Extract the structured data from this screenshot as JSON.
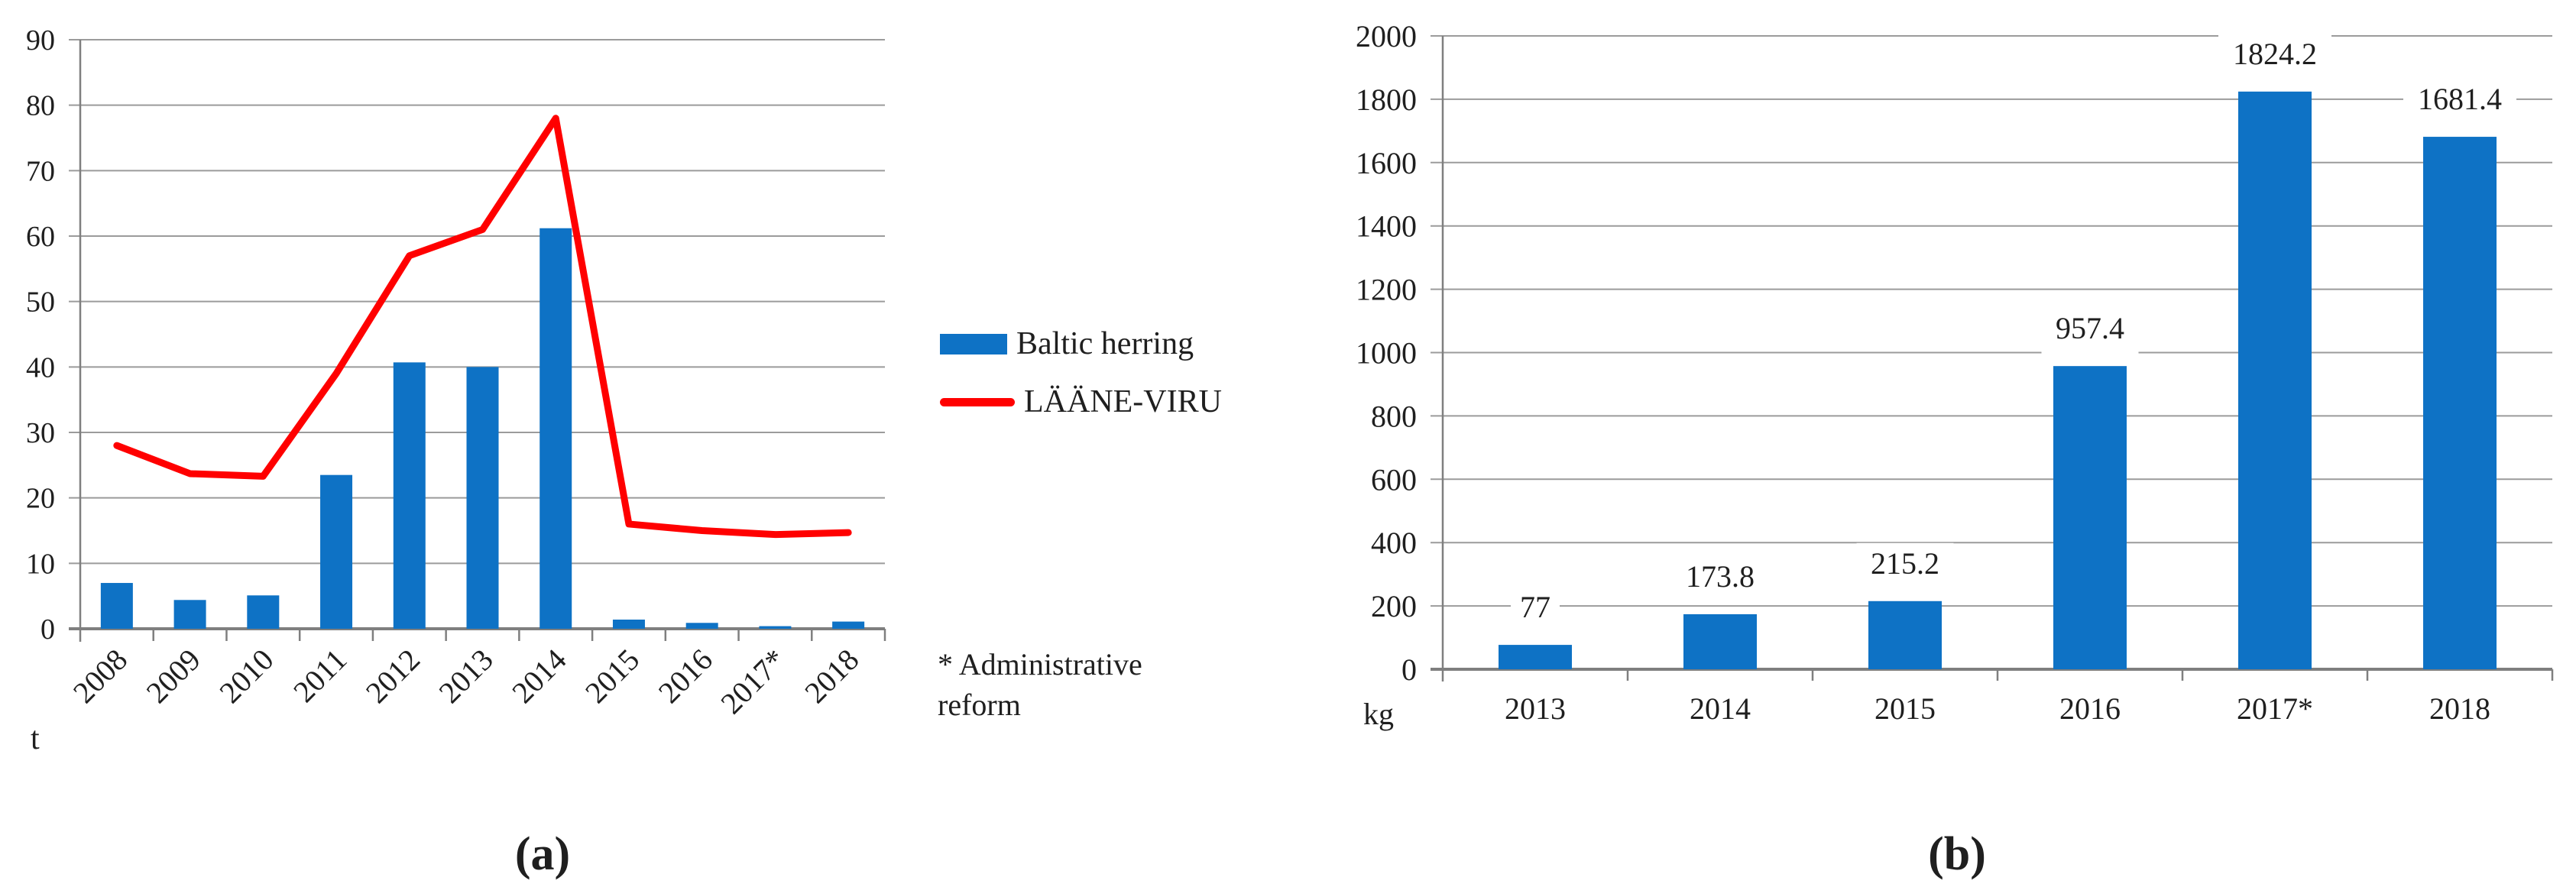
{
  "theme": {
    "bar_blue": "#0E72C5",
    "line_red": "#FF0000",
    "grid_gray": "#9B9B9B",
    "axis_gray": "#7F7F7F",
    "text_color": "#1F1F1F",
    "label_bg": "#FFFFFF"
  },
  "note": "* Administrative reform",
  "chart_data": [
    {
      "type": "bar",
      "panel": "a",
      "caption": "(a)",
      "unit_label": "t",
      "categories": [
        "2008",
        "2009",
        "2010",
        "2011",
        "2012",
        "2013",
        "2014",
        "2015",
        "2016",
        "2017*",
        "2018"
      ],
      "series": [
        {
          "name": "Baltic herring",
          "type": "bar",
          "color": "#0E72C5",
          "values": [
            7,
            4.4,
            5.1,
            23.5,
            40.7,
            40,
            61.2,
            1.4,
            0.9,
            0.4,
            1.1
          ]
        },
        {
          "name": "LÄÄNE-VIRU",
          "type": "line",
          "color": "#FF0000",
          "values": [
            28,
            23.7,
            23.3,
            39,
            57,
            61,
            78,
            16,
            15,
            14.4,
            14.7
          ]
        }
      ],
      "ylim": [
        0,
        90
      ],
      "ytick_step": 10,
      "grid": true,
      "legend_position": "right",
      "x_labels_rotated": true
    },
    {
      "type": "bar",
      "panel": "b",
      "caption": "(b)",
      "unit_label": "kg",
      "categories": [
        "2013",
        "2014",
        "2015",
        "2016",
        "2017*",
        "2018"
      ],
      "values": [
        77,
        173.8,
        215.2,
        957.4,
        1824.2,
        1681.4
      ],
      "data_labels": [
        "77",
        "173.8",
        "215.2",
        "957.4",
        "1824.2",
        "1681.4"
      ],
      "bar_color": "#0E72C5",
      "ylim": [
        0,
        2000
      ],
      "ytick_step": 200,
      "grid": true,
      "x_labels_rotated": false
    }
  ]
}
